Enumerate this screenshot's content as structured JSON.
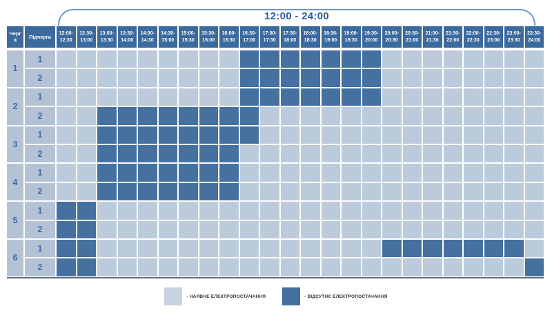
{
  "title": "12:00 - 24:00",
  "table_header": {
    "queue": "Черга",
    "subqueue": "Підчерга"
  },
  "legend": [
    {
      "swatch": "available",
      "color": "#c6d2e0",
      "label": "- НАЯВНЕ ЕЛЕКТРОПОСТАЧАННЯ"
    },
    {
      "swatch": "outage",
      "color": "#44719f",
      "label": "- ВІДСУТНЄ ЕЛЕКТРОПОСТАЧАННЯ"
    }
  ],
  "colors": {
    "available_cell": "#bccbdc",
    "outage_cell": "#44719f",
    "header_bg": "#3d6a9e",
    "header_text": "#ffffff",
    "label_cell_bg": "#b3c2d5",
    "label_text": "#3f6da6",
    "title_text": "#2b5e9d",
    "bracket": "#6b99cf"
  },
  "chart_data": {
    "type": "heatmap",
    "title": "12:00 - 24:00",
    "value_meaning": {
      "0": "наявне електропостачання",
      "1": "відсутнє електропостачання"
    },
    "columns": [
      "12:00-12:30",
      "12:30-13:00",
      "13:00-13:30",
      "13:30-14:00",
      "14:00-14:30",
      "14:30-15:00",
      "15:00-15:30",
      "15:30-16:00",
      "16:00-16:30",
      "16:30-17:00",
      "17:00-17:30",
      "17:30-18:00",
      "18:00-18:30",
      "18:30-19:00",
      "19:00-19:30",
      "19:30-20:00",
      "20:00-20:30",
      "20:30-21:00",
      "21:00-21:30",
      "21:30-22:00",
      "22:00-22:30",
      "22:30-23:00",
      "23:00-23:30",
      "23:30-24:00"
    ],
    "rows": [
      {
        "queue": "1",
        "subqueue": "1",
        "values": [
          0,
          0,
          0,
          0,
          0,
          0,
          0,
          0,
          0,
          1,
          1,
          1,
          1,
          1,
          1,
          1,
          0,
          0,
          0,
          0,
          0,
          0,
          0,
          0
        ]
      },
      {
        "queue": "1",
        "subqueue": "2",
        "values": [
          0,
          0,
          0,
          0,
          0,
          0,
          0,
          0,
          0,
          1,
          1,
          1,
          1,
          1,
          1,
          1,
          0,
          0,
          0,
          0,
          0,
          0,
          0,
          0
        ]
      },
      {
        "queue": "2",
        "subqueue": "1",
        "values": [
          0,
          0,
          0,
          0,
          0,
          0,
          0,
          0,
          0,
          1,
          1,
          1,
          1,
          1,
          1,
          1,
          0,
          0,
          0,
          0,
          0,
          0,
          0,
          0
        ]
      },
      {
        "queue": "2",
        "subqueue": "2",
        "values": [
          0,
          0,
          1,
          1,
          1,
          1,
          1,
          1,
          1,
          1,
          0,
          0,
          0,
          0,
          0,
          0,
          0,
          0,
          0,
          0,
          0,
          0,
          0,
          0
        ]
      },
      {
        "queue": "3",
        "subqueue": "1",
        "values": [
          0,
          0,
          1,
          1,
          1,
          1,
          1,
          1,
          1,
          1,
          0,
          0,
          0,
          0,
          0,
          0,
          0,
          0,
          0,
          0,
          0,
          0,
          0,
          0
        ]
      },
      {
        "queue": "3",
        "subqueue": "2",
        "values": [
          0,
          0,
          1,
          1,
          1,
          1,
          1,
          1,
          1,
          0,
          0,
          0,
          0,
          0,
          0,
          0,
          0,
          0,
          0,
          0,
          0,
          0,
          0,
          0
        ]
      },
      {
        "queue": "4",
        "subqueue": "1",
        "values": [
          0,
          0,
          1,
          1,
          1,
          1,
          1,
          1,
          1,
          0,
          0,
          0,
          0,
          0,
          0,
          0,
          0,
          0,
          0,
          0,
          0,
          0,
          0,
          0
        ]
      },
      {
        "queue": "4",
        "subqueue": "2",
        "values": [
          0,
          0,
          1,
          1,
          1,
          1,
          1,
          1,
          1,
          0,
          0,
          0,
          0,
          0,
          0,
          0,
          0,
          0,
          0,
          0,
          0,
          0,
          0,
          0
        ]
      },
      {
        "queue": "5",
        "subqueue": "1",
        "values": [
          1,
          1,
          0,
          0,
          0,
          0,
          0,
          0,
          0,
          0,
          0,
          0,
          0,
          0,
          0,
          0,
          0,
          0,
          0,
          0,
          0,
          0,
          0,
          0
        ]
      },
      {
        "queue": "5",
        "subqueue": "2",
        "values": [
          1,
          1,
          0,
          0,
          0,
          0,
          0,
          0,
          0,
          0,
          0,
          0,
          0,
          0,
          0,
          0,
          0,
          0,
          0,
          0,
          0,
          0,
          0,
          0
        ]
      },
      {
        "queue": "6",
        "subqueue": "1",
        "values": [
          1,
          1,
          0,
          0,
          0,
          0,
          0,
          0,
          0,
          0,
          0,
          0,
          0,
          0,
          0,
          0,
          1,
          1,
          1,
          1,
          1,
          1,
          1,
          0
        ]
      },
      {
        "queue": "6",
        "subqueue": "2",
        "values": [
          1,
          1,
          0,
          0,
          0,
          0,
          0,
          0,
          0,
          0,
          0,
          0,
          0,
          0,
          0,
          0,
          0,
          0,
          0,
          0,
          0,
          0,
          0,
          1
        ]
      }
    ]
  }
}
